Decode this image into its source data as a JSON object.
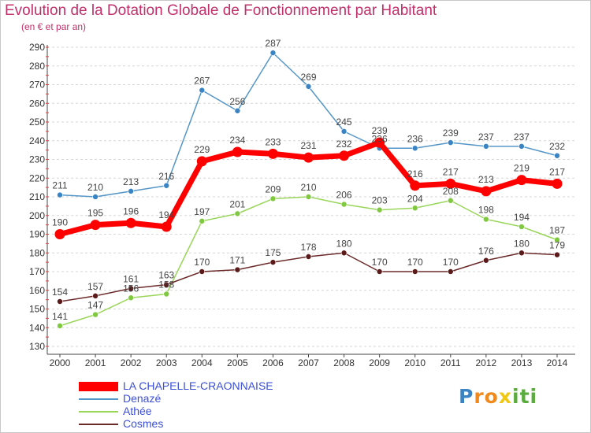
{
  "chart_data": {
    "type": "line",
    "title": "Evolution de la Dotation Globale de Fonctionnement par Habitant",
    "subtitle": "(en € et par an)",
    "xlabel": "",
    "ylabel": "",
    "categories": [
      "2000",
      "2001",
      "2002",
      "2003",
      "2004",
      "2005",
      "2006",
      "2007",
      "2008",
      "2009",
      "2010",
      "2011",
      "2012",
      "2013",
      "2014"
    ],
    "ylim": [
      130,
      290
    ],
    "yticks": [
      130,
      140,
      150,
      160,
      170,
      180,
      190,
      200,
      210,
      220,
      230,
      240,
      250,
      260,
      270,
      280,
      290
    ],
    "grid": "horizontal dashed",
    "legend_position": "bottom-left",
    "series": [
      {
        "name": "Denazé",
        "color": "#5596c8",
        "marker": "#3a84c4",
        "values": [
          211,
          210,
          213,
          216,
          267,
          256,
          287,
          269,
          245,
          236,
          236,
          239,
          237,
          237,
          232
        ]
      },
      {
        "name": "Athée",
        "color": "#9ad65a",
        "marker": "#80c840",
        "values": [
          141,
          147,
          156,
          158,
          197,
          201,
          209,
          210,
          206,
          203,
          204,
          208,
          198,
          194,
          187
        ]
      },
      {
        "name": "Cosmes",
        "color": "#6b2a2a",
        "marker": "#5a1a1a",
        "values": [
          154,
          157,
          161,
          163,
          170,
          171,
          175,
          178,
          180,
          170,
          170,
          170,
          176,
          180,
          179
        ]
      },
      {
        "name": "LA CHAPELLE-CRAONNAISE",
        "color": "#ff0000",
        "marker": "#ff0000",
        "values": [
          190,
          195,
          196,
          194,
          229,
          234,
          233,
          231,
          232,
          239,
          216,
          217,
          213,
          219,
          217
        ]
      }
    ],
    "data_labels": {
      "Denazé": [
        "211",
        "210",
        "213",
        "216",
        "267",
        "256",
        "287",
        "269",
        "245",
        "236",
        "236",
        "239",
        "237",
        "237",
        "232"
      ],
      "Athée": [
        "141",
        "147",
        "156",
        "158",
        "197",
        "201",
        "209",
        "210",
        "206",
        "203",
        "204",
        "208",
        "198",
        "194",
        "187"
      ],
      "Cosmes": [
        "154",
        "157",
        "161",
        "163",
        "170",
        "171",
        "175",
        "178",
        "180",
        "170",
        "170",
        "170",
        "176",
        "180",
        "179"
      ],
      "LA CHAPELLE-CRAONNAISE": [
        "190",
        "195",
        "196",
        "194",
        "229",
        "234",
        "233",
        "231",
        "232",
        "239",
        "216",
        "217",
        "213",
        "219",
        "217"
      ]
    }
  },
  "legend": [
    {
      "label": "LA CHAPELLE-CRAONNAISE",
      "color": "#ff0000"
    },
    {
      "label": "Denazé",
      "color": "#5596c8"
    },
    {
      "label": "Athée",
      "color": "#9ad65a"
    },
    {
      "label": "Cosmes",
      "color": "#6b2a2a"
    }
  ],
  "brand": {
    "letters": [
      "P",
      "r",
      "o",
      "x",
      "i",
      "t",
      "i"
    ],
    "colors": [
      "#3a84c4",
      "#f08a1c",
      "#f08a1c",
      "#f0c814",
      "#5aac3c",
      "#5aac3c",
      "#5aac3c"
    ]
  }
}
